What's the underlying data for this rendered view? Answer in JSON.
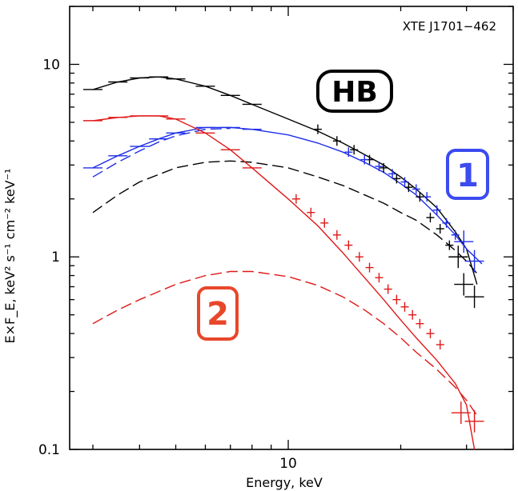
{
  "chart_data": {
    "type": "line",
    "title": "",
    "xlabel": "Energy, keV",
    "ylabel": "E×F_E, keV² s⁻¹ cm⁻² keV⁻¹",
    "x_scale": "log",
    "y_scale": "log",
    "xlim": [
      2.6,
      40
    ],
    "ylim": [
      0.1,
      20
    ],
    "x_tick_labels": [
      {
        "value": 10,
        "label": "10"
      }
    ],
    "y_tick_labels": [
      {
        "value": 0.1,
        "label": "0.1"
      },
      {
        "value": 1,
        "label": "1"
      },
      {
        "value": 10,
        "label": "10"
      }
    ],
    "annotations": [
      {
        "text": "XTE J1701−462",
        "position": "top-right"
      }
    ],
    "badges": [
      {
        "text": "HB",
        "color": "#000000"
      },
      {
        "text": "1",
        "color": "#3b4bf0"
      },
      {
        "text": "2",
        "color": "#e8472b"
      }
    ],
    "colors": {
      "hb": "#000000",
      "s1": "#1f2ee8",
      "s2": "#e01818",
      "badge1": "#3b4bf0",
      "badge2": "#e8472b"
    },
    "series": [
      {
        "name": "HB",
        "color": "#000000",
        "model": [
          [
            3.0,
            7.4
          ],
          [
            3.5,
            8.1
          ],
          [
            4.0,
            8.5
          ],
          [
            4.5,
            8.6
          ],
          [
            5.0,
            8.4
          ],
          [
            6.0,
            7.7
          ],
          [
            7.0,
            6.9
          ],
          [
            8.0,
            6.2
          ],
          [
            10.0,
            5.2
          ],
          [
            12.0,
            4.5
          ],
          [
            14.0,
            3.9
          ],
          [
            16.0,
            3.4
          ],
          [
            18.0,
            3.0
          ],
          [
            20.0,
            2.6
          ],
          [
            22.0,
            2.25
          ],
          [
            25.0,
            1.8
          ],
          [
            28.0,
            1.35
          ],
          [
            30.0,
            1.1
          ],
          [
            32.0,
            0.72
          ]
        ],
        "component_dashed": [
          [
            3.0,
            1.7
          ],
          [
            3.5,
            2.1
          ],
          [
            4.0,
            2.45
          ],
          [
            5.0,
            2.9
          ],
          [
            6.0,
            3.1
          ],
          [
            7.0,
            3.15
          ],
          [
            8.0,
            3.1
          ],
          [
            10.0,
            2.9
          ],
          [
            12.0,
            2.6
          ],
          [
            14.0,
            2.35
          ],
          [
            16.0,
            2.1
          ],
          [
            18.0,
            1.9
          ],
          [
            20.0,
            1.7
          ],
          [
            22.0,
            1.55
          ],
          [
            25.0,
            1.3
          ],
          [
            28.0,
            1.08
          ],
          [
            30.0,
            0.95
          ],
          [
            32.0,
            0.82
          ]
        ],
        "points": [
          [
            12.0,
            4.6
          ],
          [
            13.5,
            4.0
          ],
          [
            15.0,
            3.6
          ],
          [
            16.5,
            3.2
          ],
          [
            18.0,
            2.9
          ],
          [
            19.5,
            2.55
          ],
          [
            21.0,
            2.3
          ],
          [
            22.5,
            2.05
          ],
          [
            24.0,
            1.6
          ],
          [
            25.5,
            1.4
          ],
          [
            27.0,
            1.15
          ],
          [
            28.5,
            1.0
          ],
          [
            29.5,
            0.72
          ],
          [
            31.5,
            0.62
          ]
        ]
      },
      {
        "name": "1",
        "color": "#1f2ee8",
        "model": [
          [
            3.0,
            2.9
          ],
          [
            3.5,
            3.35
          ],
          [
            4.0,
            3.75
          ],
          [
            4.5,
            4.1
          ],
          [
            5.0,
            4.4
          ],
          [
            6.0,
            4.7
          ],
          [
            7.0,
            4.7
          ],
          [
            8.0,
            4.6
          ],
          [
            10.0,
            4.3
          ],
          [
            12.0,
            3.9
          ],
          [
            14.0,
            3.5
          ],
          [
            16.0,
            3.1
          ],
          [
            18.0,
            2.75
          ],
          [
            20.0,
            2.4
          ],
          [
            22.0,
            2.1
          ],
          [
            25.0,
            1.65
          ],
          [
            28.0,
            1.3
          ],
          [
            30.0,
            1.1
          ],
          [
            33.0,
            0.92
          ]
        ],
        "component_dashed": [
          [
            3.0,
            2.6
          ],
          [
            3.5,
            3.1
          ],
          [
            4.0,
            3.55
          ],
          [
            4.5,
            3.95
          ],
          [
            5.0,
            4.25
          ],
          [
            6.0,
            4.6
          ],
          [
            7.0,
            4.65
          ]
        ],
        "points": [
          [
            14.5,
            3.5
          ],
          [
            16.0,
            3.2
          ],
          [
            17.5,
            2.95
          ],
          [
            19.0,
            2.7
          ],
          [
            20.5,
            2.45
          ],
          [
            22.0,
            2.25
          ],
          [
            23.5,
            2.05
          ],
          [
            25.0,
            1.75
          ],
          [
            26.5,
            1.5
          ],
          [
            28.0,
            1.3
          ],
          [
            29.5,
            1.2
          ],
          [
            31.5,
            0.95
          ]
        ]
      },
      {
        "name": "2",
        "color": "#e01818",
        "model": [
          [
            3.0,
            5.1
          ],
          [
            3.5,
            5.3
          ],
          [
            4.0,
            5.4
          ],
          [
            4.5,
            5.4
          ],
          [
            5.0,
            5.2
          ],
          [
            6.0,
            4.4
          ],
          [
            7.0,
            3.6
          ],
          [
            8.0,
            2.9
          ],
          [
            10.0,
            2.0
          ],
          [
            12.0,
            1.45
          ],
          [
            14.0,
            1.05
          ],
          [
            16.0,
            0.78
          ],
          [
            18.0,
            0.6
          ],
          [
            20.0,
            0.47
          ],
          [
            22.0,
            0.38
          ],
          [
            25.0,
            0.29
          ],
          [
            28.0,
            0.22
          ],
          [
            30.0,
            0.17
          ],
          [
            31.5,
            0.1
          ]
        ],
        "component_dashed": [
          [
            3.0,
            0.45
          ],
          [
            3.5,
            0.53
          ],
          [
            4.0,
            0.6
          ],
          [
            5.0,
            0.72
          ],
          [
            6.0,
            0.8
          ],
          [
            7.0,
            0.84
          ],
          [
            8.0,
            0.84
          ],
          [
            10.0,
            0.79
          ],
          [
            12.0,
            0.71
          ],
          [
            14.0,
            0.62
          ],
          [
            16.0,
            0.53
          ],
          [
            18.0,
            0.45
          ],
          [
            20.0,
            0.38
          ],
          [
            22.0,
            0.32
          ],
          [
            25.0,
            0.26
          ],
          [
            28.0,
            0.21
          ],
          [
            30.0,
            0.18
          ],
          [
            32.0,
            0.15
          ]
        ],
        "points": [
          [
            10.5,
            2.0
          ],
          [
            11.5,
            1.7
          ],
          [
            12.5,
            1.5
          ],
          [
            13.5,
            1.3
          ],
          [
            14.5,
            1.15
          ],
          [
            15.5,
            1.0
          ],
          [
            16.5,
            0.88
          ],
          [
            17.5,
            0.78
          ],
          [
            18.5,
            0.68
          ],
          [
            19.5,
            0.6
          ],
          [
            20.5,
            0.55
          ],
          [
            21.5,
            0.5
          ],
          [
            22.5,
            0.45
          ],
          [
            24.0,
            0.4
          ],
          [
            25.5,
            0.35
          ],
          [
            29.0,
            0.155
          ],
          [
            31.5,
            0.14
          ]
        ]
      }
    ]
  }
}
